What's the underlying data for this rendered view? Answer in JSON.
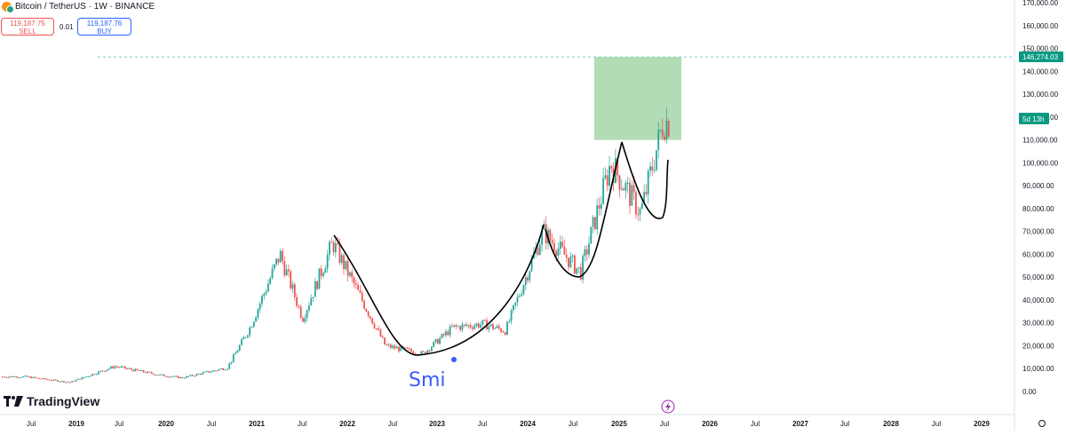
{
  "header": {
    "symbol": "Bitcoin / TetherUS · 1W · BINANCE",
    "sell_price": "119,187.75",
    "sell_label": "SELL",
    "spread": "0.01",
    "buy_price": "119,187.76",
    "buy_label": "BUY"
  },
  "branding": {
    "logo": "TradingView",
    "watermark": "Smi"
  },
  "colors": {
    "up": "#26a69a",
    "down": "#ef5350",
    "target_zone": "#a5d6a7",
    "pattern_curve": "#000000",
    "price_badge": "#089981"
  },
  "chart_data": {
    "type": "line",
    "y_ticks": [
      "170,000.00",
      "160,000.00",
      "150,000.00",
      "140,000.00",
      "130,000.00",
      "120,000.00",
      "110,000.00",
      "100,000.00",
      "90,000.00",
      "80,000.00",
      "70,000.00",
      "60,000.00",
      "50,000.00",
      "40,000.00",
      "30,000.00",
      "20,000.00",
      "10,000.00",
      "0.00"
    ],
    "ylim": [
      0,
      170000
    ],
    "x_ticks": [
      "Jul",
      "2019",
      "Jul",
      "2020",
      "Jul",
      "2021",
      "Jul",
      "2022",
      "Jul",
      "2023",
      "Jul",
      "2024",
      "Jul",
      "2025",
      "Jul",
      "2026",
      "Jul",
      "2027",
      "Jul",
      "2028",
      "Jul",
      "2029"
    ],
    "series": [
      {
        "x": [
          "2018-06",
          "2018-12",
          "2019-06",
          "2019-12",
          "2020-03",
          "2020-09",
          "2020-12",
          "2021-04",
          "2021-07",
          "2021-11",
          "2022-06",
          "2022-11",
          "2023-03",
          "2023-07",
          "2023-10",
          "2024-03",
          "2024-08",
          "2024-12",
          "2025-04",
          "2025-07"
        ],
        "values": [
          6500,
          4000,
          11000,
          7200,
          6000,
          10500,
          28000,
          60000,
          32000,
          65000,
          20000,
          16500,
          28000,
          29500,
          26500,
          70000,
          52000,
          100000,
          78000,
          118000
        ]
      }
    ],
    "annotations": {
      "target_price_label": "146,274.03",
      "target_zone": [
        110000,
        146274
      ],
      "countdown_badge": "5d 13h",
      "current_price": 118000,
      "patterns": "cup and handle"
    }
  }
}
